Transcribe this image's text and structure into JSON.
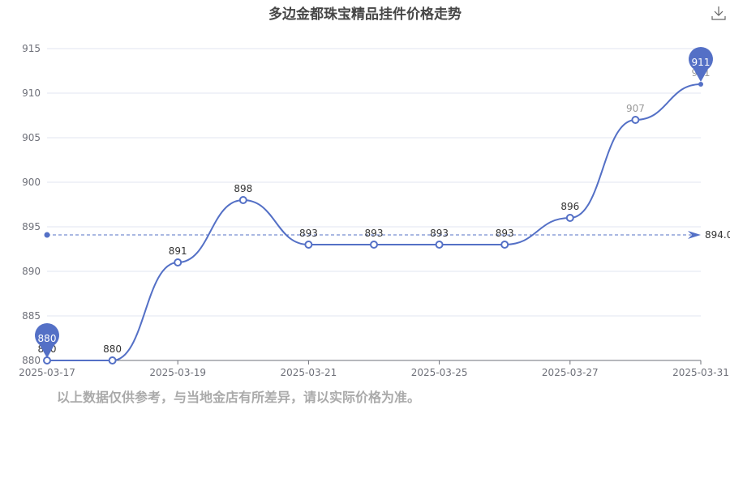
{
  "chart_data": {
    "type": "line",
    "title": "多边金都珠宝精品挂件价格走势",
    "categories": [
      "2025-03-17",
      "",
      "2025-03-19",
      "",
      "2025-03-21",
      "",
      "2025-03-25",
      "",
      "2025-03-27",
      "",
      "2025-03-31"
    ],
    "series": [
      {
        "values": [
          880,
          880,
          891,
          898,
          893,
          893,
          893,
          893,
          896,
          907,
          911
        ],
        "color": "#5470c6",
        "smooth": true
      }
    ],
    "ylim": [
      880,
      915
    ],
    "yticks": [
      880,
      885,
      890,
      895,
      900,
      905,
      910,
      915
    ],
    "grid": true,
    "mark_points": [
      {
        "type": "min",
        "label": "880"
      },
      {
        "type": "max",
        "label": "911"
      }
    ],
    "mark_line": {
      "type": "average",
      "label": "894.0"
    }
  },
  "footer_note": "以上数据仅供参考，与当地金店有所差异，请以实际价格为准。",
  "toolbox": {
    "icon": "download-icon"
  }
}
